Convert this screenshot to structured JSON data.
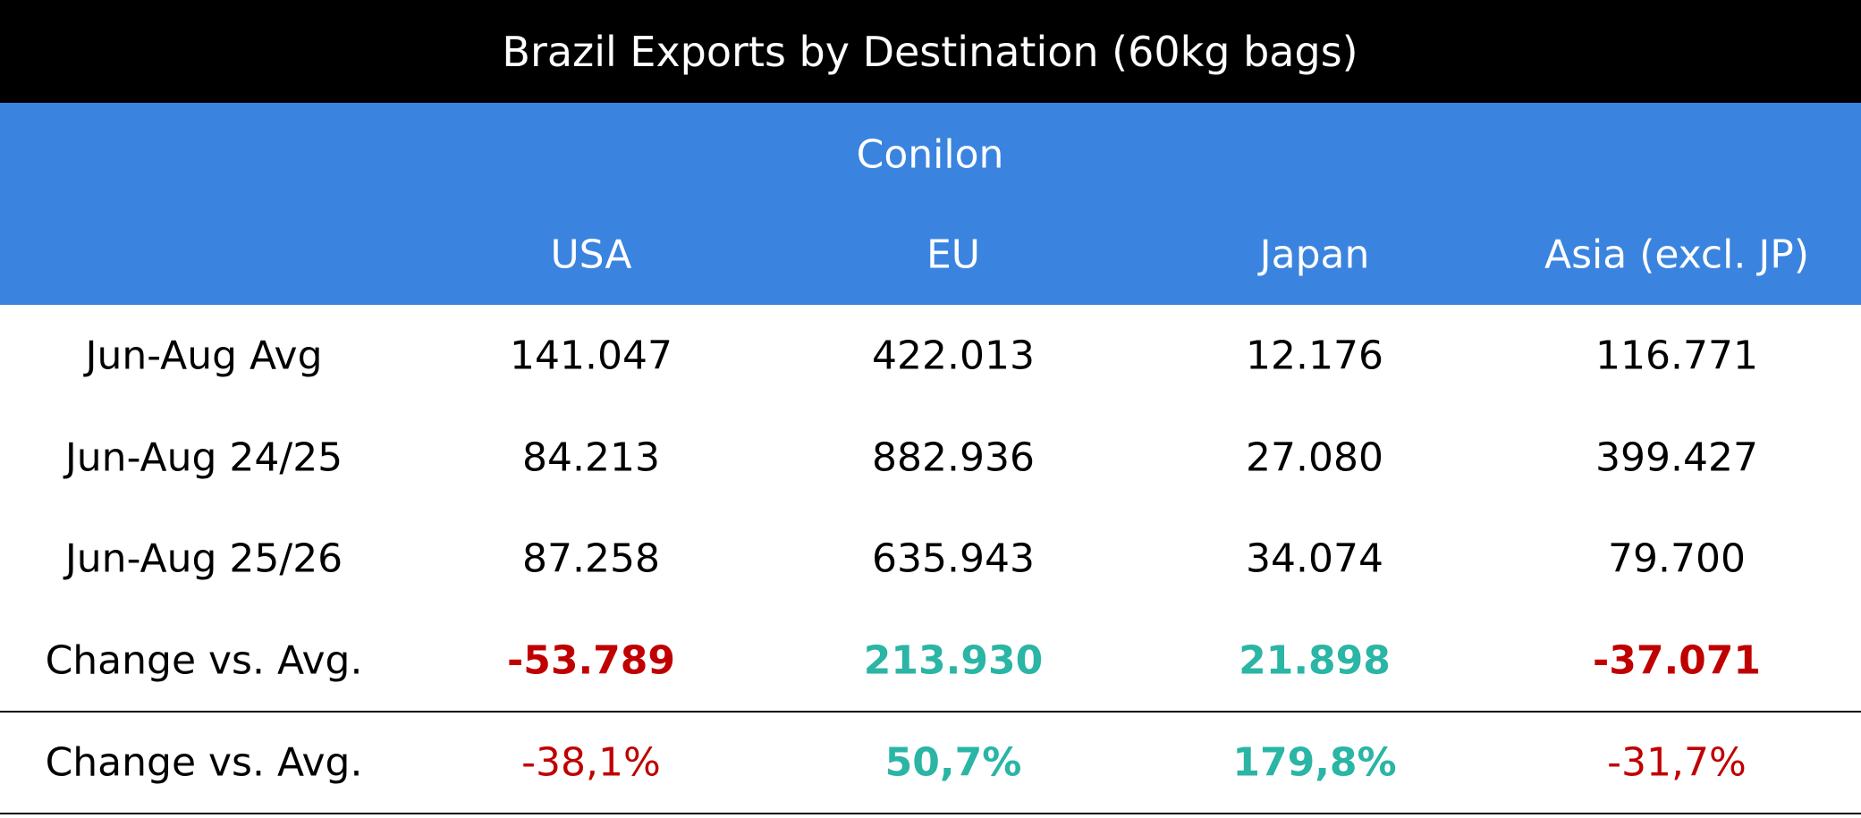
{
  "title": "Brazil Exports by Destination (60kg bags)",
  "group": "Conilon",
  "columns": [
    "USA",
    "EU",
    "Japan",
    "Asia (excl. JP)"
  ],
  "rows": [
    {
      "label": "Jun-Aug Avg",
      "cells": [
        "141.047",
        "422.013",
        "12.176",
        "116.771"
      ]
    },
    {
      "label": "Jun-Aug 24/25",
      "cells": [
        "84.213",
        "882.936",
        "27.080",
        "399.427"
      ]
    },
    {
      "label": "Jun-Aug 25/26",
      "cells": [
        "87.258",
        "635.943",
        "34.074",
        "79.700"
      ]
    },
    {
      "label": "Change vs. Avg.",
      "cells": [
        "-53.789",
        "213.930",
        "21.898",
        "-37.071"
      ],
      "colors": [
        "#c00000",
        "#2ab5a5",
        "#2ab5a5",
        "#c00000"
      ],
      "weights": [
        "bold",
        "bold",
        "bold",
        "bold"
      ]
    },
    {
      "label": "Change vs. Avg.",
      "cells": [
        "-38,1%",
        "50,7%",
        "179,8%",
        "-31,7%"
      ],
      "colors": [
        "#c00000",
        "#2ab5a5",
        "#2ab5a5",
        "#c00000"
      ],
      "weights": [
        "normal",
        "bold",
        "bold",
        "normal"
      ]
    }
  ]
}
